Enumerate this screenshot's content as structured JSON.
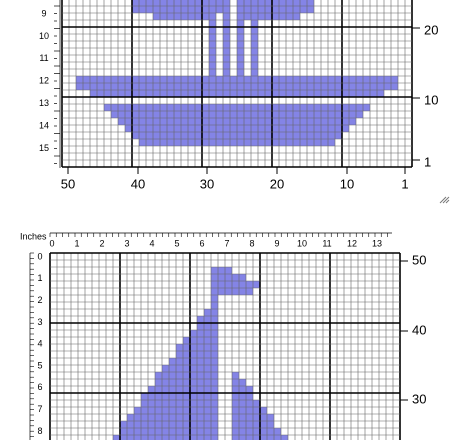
{
  "top_chart": {
    "row_labels": [
      "9",
      "10",
      "11",
      "12",
      "13",
      "14",
      "15"
    ],
    "right_labels": [
      "20",
      "10",
      "1"
    ],
    "bottom_labels": [
      "50",
      "40",
      "30",
      "20",
      "10",
      "1"
    ]
  },
  "bottom_chart": {
    "inches_label": "Inches",
    "inch_labels": [
      "0",
      "1",
      "2",
      "3",
      "4",
      "5",
      "6",
      "7",
      "8",
      "9",
      "10",
      "11",
      "12",
      "13"
    ],
    "row_labels": [
      "0",
      "1",
      "2",
      "3",
      "4",
      "5",
      "6",
      "7",
      "8"
    ],
    "right_labels": [
      "50",
      "40",
      "30"
    ]
  }
}
